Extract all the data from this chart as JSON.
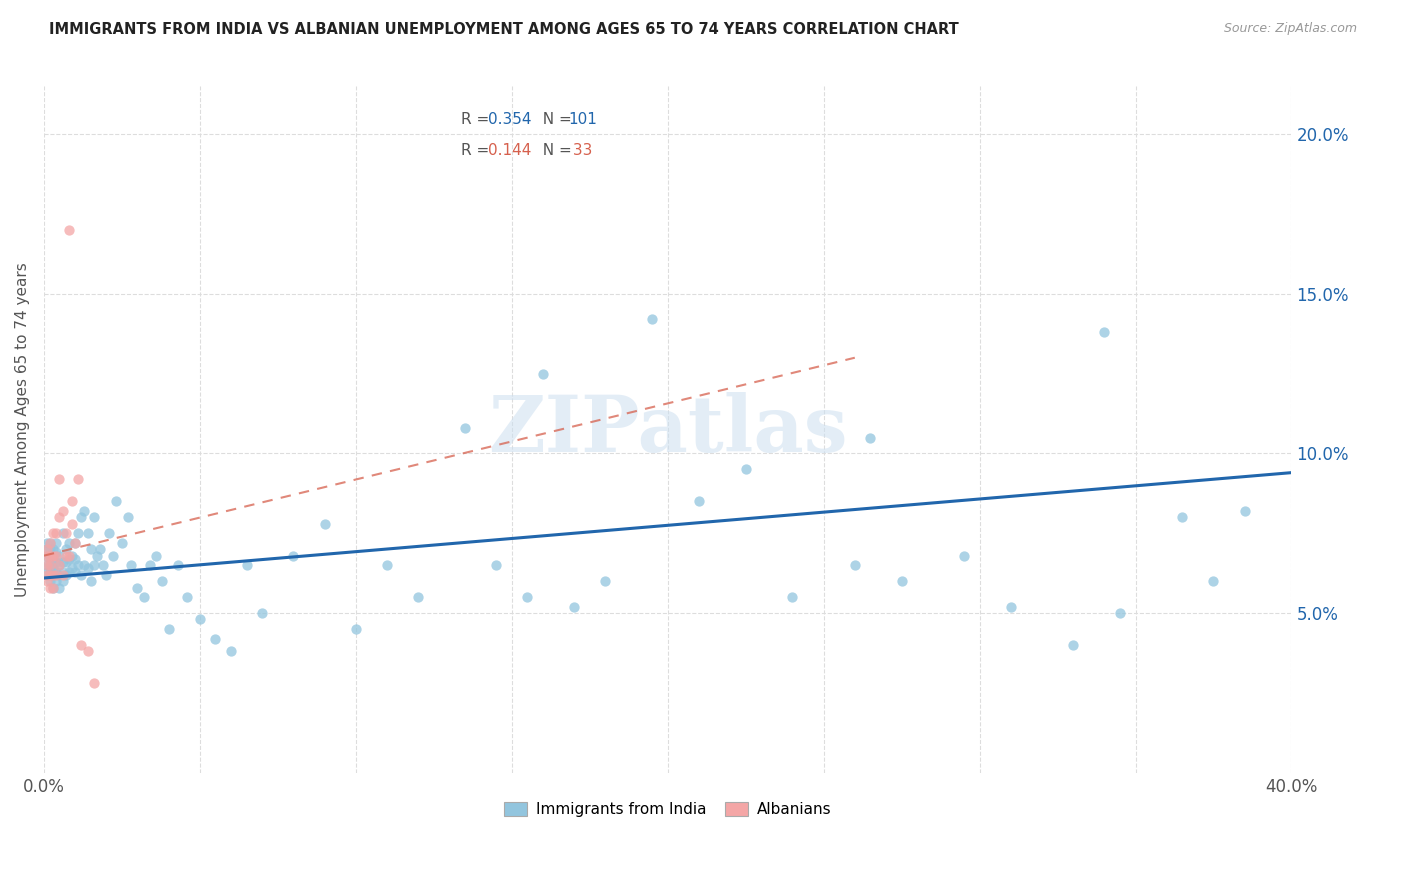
{
  "title": "IMMIGRANTS FROM INDIA VS ALBANIAN UNEMPLOYMENT AMONG AGES 65 TO 74 YEARS CORRELATION CHART",
  "source": "Source: ZipAtlas.com",
  "ylabel": "Unemployment Among Ages 65 to 74 years",
  "legend_label1": "Immigrants from India",
  "legend_label2": "Albanians",
  "r1": "0.354",
  "n1": "101",
  "r2": "0.144",
  "n2": "33",
  "color_india": "#92c5de",
  "color_albania": "#f4a6a6",
  "color_india_line": "#2166ac",
  "color_albania_line": "#d6604d",
  "watermark": "ZIPatlas",
  "xlim": [
    0.0,
    0.4
  ],
  "ylim": [
    0.0,
    0.215
  ],
  "ytick_vals": [
    0.05,
    0.1,
    0.15,
    0.2
  ],
  "ytick_labels": [
    "5.0%",
    "10.0%",
    "15.0%",
    "20.0%"
  ],
  "india_line_x": [
    0.0,
    0.4
  ],
  "india_line_y": [
    0.061,
    0.094
  ],
  "albania_line_x": [
    0.0,
    0.26
  ],
  "albania_line_y": [
    0.068,
    0.13
  ],
  "india_x": [
    0.001,
    0.001,
    0.001,
    0.001,
    0.001,
    0.002,
    0.002,
    0.002,
    0.002,
    0.002,
    0.002,
    0.003,
    0.003,
    0.003,
    0.003,
    0.003,
    0.004,
    0.004,
    0.004,
    0.004,
    0.004,
    0.005,
    0.005,
    0.005,
    0.005,
    0.006,
    0.006,
    0.006,
    0.006,
    0.007,
    0.007,
    0.007,
    0.008,
    0.008,
    0.008,
    0.009,
    0.009,
    0.01,
    0.01,
    0.01,
    0.011,
    0.011,
    0.012,
    0.012,
    0.013,
    0.013,
    0.014,
    0.014,
    0.015,
    0.015,
    0.016,
    0.016,
    0.017,
    0.018,
    0.019,
    0.02,
    0.021,
    0.022,
    0.023,
    0.025,
    0.027,
    0.028,
    0.03,
    0.032,
    0.034,
    0.036,
    0.038,
    0.04,
    0.043,
    0.046,
    0.05,
    0.055,
    0.06,
    0.065,
    0.07,
    0.08,
    0.09,
    0.1,
    0.11,
    0.12,
    0.135,
    0.145,
    0.155,
    0.17,
    0.18,
    0.195,
    0.21,
    0.225,
    0.24,
    0.26,
    0.275,
    0.295,
    0.31,
    0.33,
    0.345,
    0.365,
    0.375,
    0.16,
    0.265,
    0.34,
    0.385
  ],
  "india_y": [
    0.063,
    0.065,
    0.068,
    0.07,
    0.072,
    0.06,
    0.063,
    0.065,
    0.068,
    0.07,
    0.072,
    0.058,
    0.062,
    0.064,
    0.067,
    0.07,
    0.06,
    0.063,
    0.066,
    0.069,
    0.072,
    0.058,
    0.062,
    0.065,
    0.068,
    0.06,
    0.063,
    0.066,
    0.075,
    0.062,
    0.066,
    0.07,
    0.063,
    0.067,
    0.072,
    0.064,
    0.068,
    0.063,
    0.067,
    0.072,
    0.065,
    0.075,
    0.062,
    0.08,
    0.065,
    0.082,
    0.064,
    0.075,
    0.06,
    0.07,
    0.065,
    0.08,
    0.068,
    0.07,
    0.065,
    0.062,
    0.075,
    0.068,
    0.085,
    0.072,
    0.08,
    0.065,
    0.058,
    0.055,
    0.065,
    0.068,
    0.06,
    0.045,
    0.065,
    0.055,
    0.048,
    0.042,
    0.038,
    0.065,
    0.05,
    0.068,
    0.078,
    0.045,
    0.065,
    0.055,
    0.108,
    0.065,
    0.055,
    0.052,
    0.06,
    0.142,
    0.085,
    0.095,
    0.055,
    0.065,
    0.06,
    0.068,
    0.052,
    0.04,
    0.05,
    0.08,
    0.06,
    0.125,
    0.105,
    0.138,
    0.082
  ],
  "albania_x": [
    0.001,
    0.001,
    0.001,
    0.001,
    0.001,
    0.002,
    0.002,
    0.002,
    0.002,
    0.002,
    0.003,
    0.003,
    0.003,
    0.003,
    0.004,
    0.004,
    0.004,
    0.005,
    0.005,
    0.005,
    0.006,
    0.006,
    0.007,
    0.007,
    0.008,
    0.008,
    0.009,
    0.009,
    0.01,
    0.011,
    0.012,
    0.014,
    0.016
  ],
  "albania_y": [
    0.06,
    0.062,
    0.065,
    0.068,
    0.07,
    0.058,
    0.062,
    0.065,
    0.068,
    0.072,
    0.058,
    0.062,
    0.068,
    0.075,
    0.062,
    0.068,
    0.075,
    0.065,
    0.08,
    0.092,
    0.062,
    0.082,
    0.068,
    0.075,
    0.17,
    0.068,
    0.078,
    0.085,
    0.072,
    0.092,
    0.04,
    0.038,
    0.028
  ]
}
